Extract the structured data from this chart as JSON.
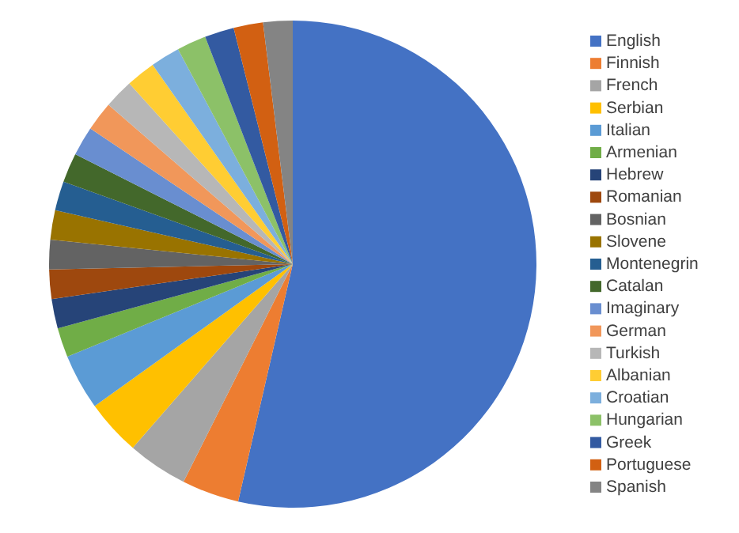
{
  "chart_data": {
    "type": "pie",
    "categories": [
      "English",
      "Finnish",
      "French",
      "Serbian",
      "Italian",
      "Armenian",
      "Hebrew",
      "Romanian",
      "Bosnian",
      "Slovene",
      "Montenegrin",
      "Catalan",
      "Imaginary",
      "German",
      "Turkish",
      "Albanian",
      "Croatian",
      "Hungarian",
      "Greek",
      "Portuguese",
      "Spanish"
    ],
    "values": [
      53.6,
      3.8,
      4.0,
      3.7,
      3.7,
      1.95,
      1.95,
      1.95,
      1.95,
      1.95,
      1.95,
      1.95,
      1.95,
      1.95,
      1.95,
      1.95,
      1.95,
      1.95,
      1.95,
      1.95,
      1.95
    ],
    "colors": [
      "#4472c4",
      "#ed7d31",
      "#a5a5a5",
      "#ffc000",
      "#5b9bd5",
      "#70ad47",
      "#264478",
      "#9e480e",
      "#636363",
      "#997300",
      "#255e91",
      "#43682b",
      "#698ed0",
      "#f1975a",
      "#b7b7b7",
      "#ffcd33",
      "#7cafdd",
      "#8cc168",
      "#335aa1",
      "#d26012",
      "#848484"
    ],
    "legend": "right"
  }
}
